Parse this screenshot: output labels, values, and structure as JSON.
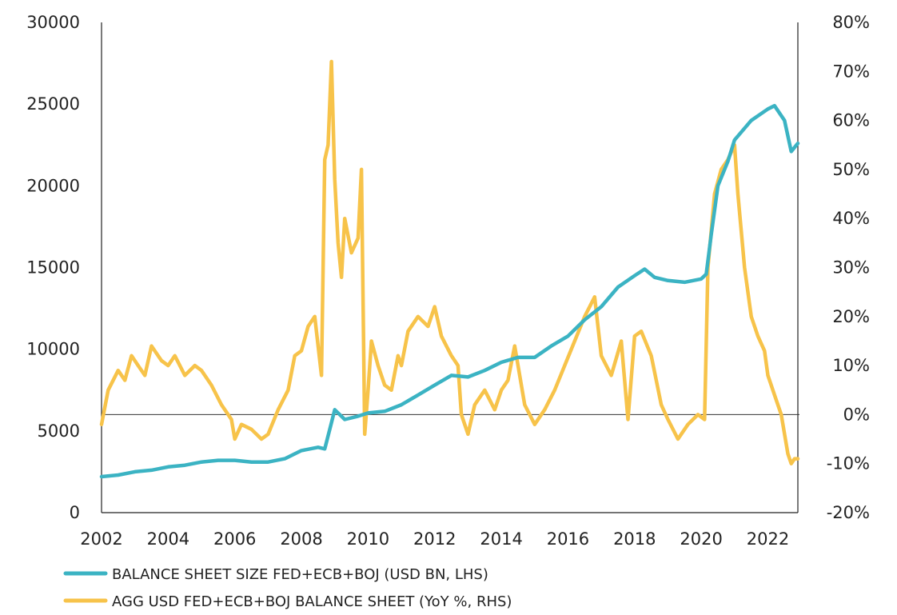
{
  "chart_data": {
    "type": "line",
    "title": "",
    "x_range": [
      2002.0,
      2022.9
    ],
    "x_ticks": [
      "2002",
      "2004",
      "2006",
      "2008",
      "2010",
      "2012",
      "2014",
      "2016",
      "2018",
      "2020",
      "2022"
    ],
    "y_left": {
      "range": [
        0,
        30000
      ],
      "ticks": [
        "0",
        "5000",
        "10000",
        "15000",
        "20000",
        "25000",
        "30000"
      ]
    },
    "y_right": {
      "range": [
        -20,
        80
      ],
      "unit": "%",
      "ticks": [
        "-20%",
        "-10%",
        "0%",
        "10%",
        "20%",
        "30%",
        "40%",
        "50%",
        "60%",
        "70%",
        "80%"
      ]
    },
    "zero_line_right": 0,
    "grid": false,
    "legend_position": "bottom-left",
    "colors": {
      "balance_sheet": "#3bb3c3",
      "yoy": "#f7c34a",
      "axis": "#222222"
    },
    "series": [
      {
        "name": "BALANCE SHEET SIZE FED+ECB+BOJ (USD BN, LHS)",
        "axis": "left",
        "color": "#3bb3c3",
        "x": [
          2002.0,
          2002.5,
          2003.0,
          2003.5,
          2004.0,
          2004.5,
          2005.0,
          2005.5,
          2006.0,
          2006.5,
          2007.0,
          2007.5,
          2008.0,
          2008.5,
          2008.7,
          2008.9,
          2009.0,
          2009.3,
          2009.7,
          2010.0,
          2010.5,
          2011.0,
          2011.5,
          2012.0,
          2012.5,
          2013.0,
          2013.5,
          2014.0,
          2014.5,
          2015.0,
          2015.5,
          2016.0,
          2016.5,
          2017.0,
          2017.5,
          2018.0,
          2018.3,
          2018.6,
          2019.0,
          2019.5,
          2020.0,
          2020.15,
          2020.3,
          2020.5,
          2020.8,
          2021.0,
          2021.5,
          2022.0,
          2022.2,
          2022.5,
          2022.7,
          2022.9
        ],
        "values": [
          2200,
          2300,
          2500,
          2600,
          2800,
          2900,
          3100,
          3200,
          3200,
          3100,
          3100,
          3300,
          3800,
          4000,
          3900,
          5500,
          6300,
          5700,
          5900,
          6100,
          6200,
          6600,
          7200,
          7800,
          8400,
          8300,
          8700,
          9200,
          9500,
          9500,
          10200,
          10800,
          11800,
          12600,
          13800,
          14500,
          14900,
          14400,
          14200,
          14100,
          14300,
          14600,
          17000,
          20000,
          21500,
          22800,
          24000,
          24700,
          24900,
          24000,
          22100,
          22600
        ]
      },
      {
        "name": "AGG USD FED+ECB+BOJ BALANCE SHEET (YoY %, RHS)",
        "axis": "right",
        "color": "#f7c34a",
        "x": [
          2002.0,
          2002.2,
          2002.5,
          2002.7,
          2002.9,
          2003.1,
          2003.3,
          2003.5,
          2003.8,
          2004.0,
          2004.2,
          2004.5,
          2004.8,
          2005.0,
          2005.3,
          2005.6,
          2005.9,
          2006.0,
          2006.2,
          2006.5,
          2006.8,
          2007.0,
          2007.3,
          2007.6,
          2007.8,
          2008.0,
          2008.2,
          2008.4,
          2008.6,
          2008.7,
          2008.8,
          2008.9,
          2009.0,
          2009.1,
          2009.2,
          2009.3,
          2009.5,
          2009.7,
          2009.8,
          2009.9,
          2010.0,
          2010.1,
          2010.3,
          2010.5,
          2010.7,
          2010.9,
          2011.0,
          2011.2,
          2011.5,
          2011.8,
          2012.0,
          2012.2,
          2012.5,
          2012.7,
          2012.8,
          2013.0,
          2013.2,
          2013.5,
          2013.8,
          2014.0,
          2014.2,
          2014.4,
          2014.7,
          2015.0,
          2015.3,
          2015.6,
          2015.9,
          2016.2,
          2016.5,
          2016.8,
          2017.0,
          2017.3,
          2017.6,
          2017.8,
          2018.0,
          2018.2,
          2018.5,
          2018.8,
          2019.0,
          2019.3,
          2019.6,
          2019.9,
          2020.1,
          2020.2,
          2020.4,
          2020.6,
          2020.8,
          2021.0,
          2021.1,
          2021.3,
          2021.5,
          2021.7,
          2021.9,
          2022.0,
          2022.2,
          2022.4,
          2022.6,
          2022.7,
          2022.8,
          2022.9
        ],
        "values": [
          -2,
          5,
          9,
          7,
          12,
          10,
          8,
          14,
          11,
          10,
          12,
          8,
          10,
          9,
          6,
          2,
          -1,
          -5,
          -2,
          -3,
          -5,
          -4,
          1,
          5,
          12,
          13,
          18,
          20,
          8,
          52,
          55,
          72,
          48,
          35,
          28,
          40,
          33,
          36,
          50,
          -4,
          5,
          15,
          10,
          6,
          5,
          12,
          10,
          17,
          20,
          18,
          22,
          16,
          12,
          10,
          0,
          -4,
          2,
          5,
          1,
          5,
          7,
          14,
          2,
          -2,
          1,
          5,
          10,
          15,
          20,
          24,
          12,
          8,
          15,
          -1,
          16,
          17,
          12,
          2,
          -1,
          -5,
          -2,
          0,
          -1,
          30,
          45,
          50,
          52,
          55,
          45,
          30,
          20,
          16,
          13,
          8,
          4,
          0,
          -8,
          -10,
          -9,
          -9
        ]
      }
    ]
  }
}
